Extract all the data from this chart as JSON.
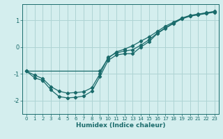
{
  "xlabel": "Humidex (Indice chaleur)",
  "bg_color": "#d4eeee",
  "line_color": "#1a6b6b",
  "grid_color": "#aed4d4",
  "xlim": [
    -0.5,
    23.5
  ],
  "ylim": [
    -2.5,
    1.6
  ],
  "yticks": [
    -2,
    -1,
    0,
    1
  ],
  "xticks": [
    0,
    1,
    2,
    3,
    4,
    5,
    6,
    7,
    8,
    9,
    10,
    11,
    12,
    13,
    14,
    15,
    16,
    17,
    18,
    19,
    20,
    21,
    22,
    23
  ],
  "line1_x": [
    0,
    1,
    2,
    3,
    4,
    5,
    6,
    7,
    8,
    9,
    10,
    11,
    12,
    13,
    14,
    15,
    16,
    17,
    18,
    19,
    20,
    21,
    22,
    23
  ],
  "line1_y": [
    -0.9,
    -1.15,
    -1.25,
    -1.6,
    -1.85,
    -1.9,
    -1.88,
    -1.83,
    -1.65,
    -1.1,
    -0.5,
    -0.3,
    -0.25,
    -0.25,
    0.0,
    0.2,
    0.5,
    0.7,
    0.88,
    1.05,
    1.15,
    1.2,
    1.25,
    1.3
  ],
  "line2_x": [
    0,
    9,
    10,
    11,
    12,
    13,
    14,
    15,
    16,
    17,
    18,
    19,
    20,
    21,
    22,
    23
  ],
  "line2_y": [
    -0.9,
    -0.9,
    -0.42,
    -0.18,
    -0.08,
    0.05,
    0.22,
    0.38,
    0.58,
    0.78,
    0.93,
    1.07,
    1.17,
    1.22,
    1.27,
    1.32
  ],
  "line3_x": [
    0,
    1,
    2,
    3,
    4,
    5,
    6,
    7,
    8,
    9,
    10,
    11,
    12,
    13,
    14,
    15,
    16,
    17,
    18,
    19,
    20,
    21,
    22,
    23
  ],
  "line3_y": [
    -0.9,
    -1.05,
    -1.18,
    -1.48,
    -1.65,
    -1.72,
    -1.7,
    -1.67,
    -1.52,
    -1.0,
    -0.38,
    -0.22,
    -0.15,
    -0.1,
    0.07,
    0.27,
    0.52,
    0.72,
    0.9,
    1.08,
    1.18,
    1.23,
    1.28,
    1.33
  ]
}
